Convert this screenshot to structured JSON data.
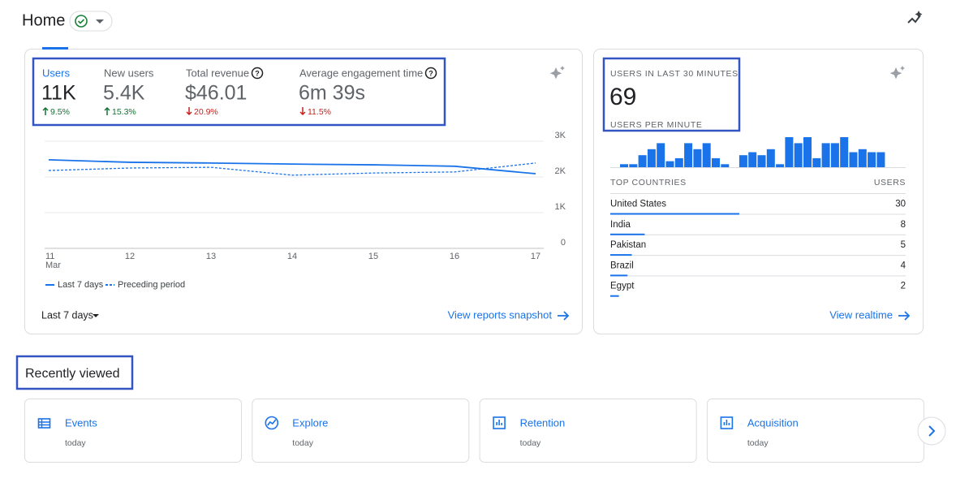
{
  "header": {
    "title": "Home"
  },
  "summary_card": {
    "selected_metric": 0,
    "metrics": [
      {
        "label": "Users",
        "value": "11K",
        "change": "9.5%",
        "direction": "up"
      },
      {
        "label": "New users",
        "value": "5.4K",
        "change": "15.3%",
        "direction": "up"
      },
      {
        "label": "Total revenue",
        "value": "$46.01",
        "change": "20.9%",
        "direction": "down"
      },
      {
        "label": "Average engagement time",
        "value": "6m 39s",
        "change": "11.5%",
        "direction": "down"
      }
    ],
    "chart": {
      "type": "line",
      "categories": [
        "11",
        "12",
        "13",
        "14",
        "15",
        "16",
        "17"
      ],
      "month": "Mar",
      "series": [
        {
          "name": "Last 7 days",
          "color": "#1a73e8",
          "dashed": false,
          "values": [
            2480,
            2410,
            2390,
            2360,
            2340,
            2300,
            2090
          ]
        },
        {
          "name": "Preceding period",
          "color": "#1a73e8",
          "dashed": true,
          "values": [
            2180,
            2250,
            2270,
            2050,
            2110,
            2140,
            2390
          ]
        }
      ],
      "ylim": [
        0,
        3000
      ],
      "yticks": [
        0,
        {
          "value": 1000,
          "label": "1K"
        },
        {
          "value": 2000,
          "label": "2K"
        },
        {
          "value": 3000,
          "label": "3K"
        }
      ],
      "grid": true
    },
    "period": "Last 7 days",
    "link": "View reports snapshot"
  },
  "realtime_card": {
    "title": "USERS IN LAST 30 MINUTES",
    "value": 69,
    "subtitle": "USERS PER MINUTE",
    "per_minute": {
      "type": "bar",
      "color": "#1a73e8",
      "ylim": [
        0,
        10
      ],
      "values": [
        1,
        1,
        4,
        6,
        8,
        2,
        3,
        8,
        6,
        8,
        3,
        1,
        0,
        4,
        5,
        4,
        6,
        1,
        10,
        8,
        10,
        3,
        8,
        8,
        10,
        5,
        6,
        5,
        5,
        0
      ]
    },
    "table": {
      "columns": [
        "TOP COUNTRIES",
        "USERS"
      ],
      "rows": [
        [
          "United States",
          30
        ],
        [
          "India",
          8
        ],
        [
          "Pakistan",
          5
        ],
        [
          "Brazil",
          4
        ],
        [
          "Egypt",
          2
        ]
      ]
    },
    "link": "View realtime"
  },
  "recently_viewed": {
    "title": "Recently viewed",
    "items": [
      {
        "title": "Events",
        "time": "today"
      },
      {
        "title": "Explore",
        "time": "today"
      },
      {
        "title": "Retention",
        "time": "today"
      },
      {
        "title": "Acquisition",
        "time": "today"
      }
    ]
  }
}
